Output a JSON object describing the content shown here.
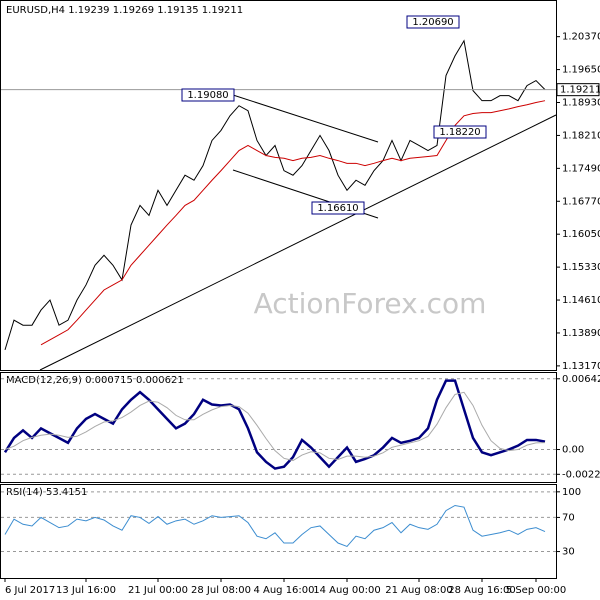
{
  "chart_data": [
    {
      "type": "line",
      "title": "EURUSD,H4  1.19239 1.19269 1.19135 1.19211",
      "watermark": "ActionForex.com",
      "ylim": [
        1.1308,
        1.2115
      ],
      "yticks": [
        {
          "value": 1.2037,
          "label": "1.20370"
        },
        {
          "value": 1.1965,
          "label": "1.19650"
        },
        {
          "value": 1.1893,
          "label": "1.18930"
        },
        {
          "value": 1.1821,
          "label": "1.18210"
        },
        {
          "value": 1.1749,
          "label": "1.17490"
        },
        {
          "value": 1.1677,
          "label": "1.16770"
        },
        {
          "value": 1.1605,
          "label": "1.16050"
        },
        {
          "value": 1.1533,
          "label": "1.15330"
        },
        {
          "value": 1.1461,
          "label": "1.14610"
        },
        {
          "value": 1.1389,
          "label": "1.13890"
        },
        {
          "value": 1.1317,
          "label": "1.13170"
        }
      ],
      "current_price_label": "1.19211",
      "annotations": [
        "1.20690",
        "1.19080",
        "1.18220",
        "1.16610"
      ],
      "series": [
        {
          "name": "EURUSD",
          "color": "#000000",
          "values": [
            1.1352,
            1.1417,
            1.1406,
            1.1406,
            1.1439,
            1.1461,
            1.1406,
            1.1417,
            1.1461,
            1.1494,
            1.1537,
            1.1559,
            1.1537,
            1.1505,
            1.1625,
            1.1668,
            1.1646,
            1.1701,
            1.1668,
            1.1701,
            1.1734,
            1.1723,
            1.1755,
            1.181,
            1.1832,
            1.1864,
            1.1886,
            1.1875,
            1.181,
            1.1777,
            1.1799,
            1.1744,
            1.1734,
            1.1755,
            1.1788,
            1.1821,
            1.1788,
            1.1734,
            1.1701,
            1.1723,
            1.1712,
            1.1744,
            1.1766,
            1.181,
            1.1766,
            1.181,
            1.1799,
            1.1788,
            1.1799,
            1.1952,
            1.1995,
            1.2028,
            1.1919,
            1.1897,
            1.1897,
            1.1908,
            1.1908,
            1.1897,
            1.193,
            1.1941,
            1.19211
          ]
        },
        {
          "name": "MA",
          "color": "#cc0000",
          "values": [
            null,
            null,
            null,
            null,
            1.1363,
            1.1374,
            1.1385,
            1.1396,
            1.1417,
            1.1439,
            1.1461,
            1.1483,
            1.1494,
            1.1505,
            1.1537,
            1.1559,
            1.1581,
            1.1603,
            1.1625,
            1.1646,
            1.1668,
            1.1679,
            1.1701,
            1.1723,
            1.1744,
            1.1766,
            1.1788,
            1.1799,
            1.1788,
            1.1777,
            1.1773,
            1.1771,
            1.1766,
            1.1771,
            1.1773,
            1.1777,
            1.1771,
            1.1766,
            1.176,
            1.176,
            1.1755,
            1.176,
            1.1766,
            1.1771,
            1.1766,
            1.1771,
            1.1773,
            1.1775,
            1.1777,
            1.181,
            1.1843,
            1.1864,
            1.1869,
            1.1871,
            1.1871,
            1.1875,
            1.1879,
            1.1884,
            1.1888,
            1.1893,
            1.1897
          ]
        }
      ]
    },
    {
      "type": "line",
      "title": "MACD(12,26,9) 0.000715 0.000621",
      "ylim": [
        -0.00295,
        0.00695
      ],
      "grid": true,
      "yticks": [
        0.006425,
        {
          "value": 0,
          "label": "0.00"
        },
        -0.002251
      ],
      "series": [
        {
          "name": "MACD",
          "color": "#000080",
          "values": [
            -0.00025,
            0.00105,
            0.00174,
            0.00105,
            0.00192,
            0.00148,
            0.00105,
            0.00061,
            0.00192,
            0.00278,
            0.00322,
            0.00278,
            0.00235,
            0.00365,
            0.00452,
            0.00521,
            0.00452,
            0.00365,
            0.00278,
            0.00192,
            0.00235,
            0.00322,
            0.00452,
            0.00409,
            0.004,
            0.00409,
            0.00365,
            0.00192,
            -0.00025,
            -0.00112,
            -0.00173,
            -0.00156,
            -0.00069,
            0.00087,
            0.00018,
            -0.00069,
            -0.00156,
            -0.00069,
            0.00018,
            -0.00112,
            -0.00086,
            -0.00052,
            0.00018,
            0.00105,
            0.00061,
            0.00079,
            0.00105,
            0.00192,
            0.00452,
            0.00626,
            0.00626,
            0.00365,
            0.00105,
            -0.00025,
            -0.00052,
            -0.00025,
            1e-05,
            0.00035,
            0.00087,
            0.00087,
            0.000715
          ]
        },
        {
          "name": "Signal",
          "color": "#aaaaaa",
          "values": [
            0,
            0.0003,
            0.0008,
            0.0011,
            0.0013,
            0.0014,
            0.0013,
            0.0011,
            0.0012,
            0.0016,
            0.0021,
            0.0025,
            0.0026,
            0.0029,
            0.0034,
            0.004,
            0.0044,
            0.0043,
            0.0038,
            0.0031,
            0.0027,
            0.0027,
            0.0032,
            0.0036,
            0.0039,
            0.004,
            0.0039,
            0.0033,
            0.0022,
            0.001,
            -0.0001,
            -0.0008,
            -0.001,
            -0.0005,
            -0.0002,
            -0.0003,
            -0.0008,
            -0.0009,
            -0.0006,
            -0.0006,
            -0.0007,
            -0.0006,
            -0.0003,
            0.0002,
            0.0004,
            0.0006,
            0.0008,
            0.0012,
            0.0023,
            0.0038,
            0.005,
            0.0052,
            0.004,
            0.0022,
            0.0008,
            0.0001,
            -0.0001,
            0,
            0.0004,
            0.0006,
            0.000621
          ]
        }
      ]
    },
    {
      "type": "line",
      "title": "RSI(14) 53.4151",
      "ylim": [
        -1,
        108
      ],
      "grid": true,
      "yticks": [
        100,
        70,
        30
      ],
      "categories": [
        "6 Jul 2017",
        null,
        null,
        null,
        null,
        null,
        null,
        null,
        null,
        "13 Jul 16:00",
        null,
        null,
        null,
        null,
        null,
        null,
        null,
        "21 Jul 00:00",
        null,
        null,
        null,
        null,
        null,
        null,
        "28 Jul 08:00",
        null,
        null,
        null,
        null,
        null,
        null,
        "4 Aug 16:00",
        null,
        null,
        null,
        null,
        null,
        null,
        "14 Aug 00:00",
        null,
        null,
        null,
        null,
        null,
        null,
        null,
        "21 Aug 08:00",
        null,
        null,
        null,
        null,
        null,
        null,
        "28 Aug 16:00",
        null,
        null,
        null,
        null,
        null,
        "5 Sep 00:00",
        null
      ],
      "series": [
        {
          "name": "RSI",
          "color": "#3c8dd0",
          "values": [
            50,
            68,
            62,
            60,
            70,
            64,
            58,
            60,
            68,
            66,
            70,
            67,
            60,
            55,
            72,
            70,
            63,
            71,
            62,
            66,
            68,
            62,
            66,
            72,
            70,
            71,
            72,
            64,
            48,
            45,
            52,
            40,
            40,
            50,
            58,
            60,
            50,
            40,
            36,
            48,
            45,
            55,
            58,
            64,
            52,
            62,
            58,
            56,
            62,
            78,
            84,
            82,
            55,
            48,
            50,
            52,
            55,
            50,
            56,
            58,
            53.4151
          ]
        }
      ]
    }
  ]
}
